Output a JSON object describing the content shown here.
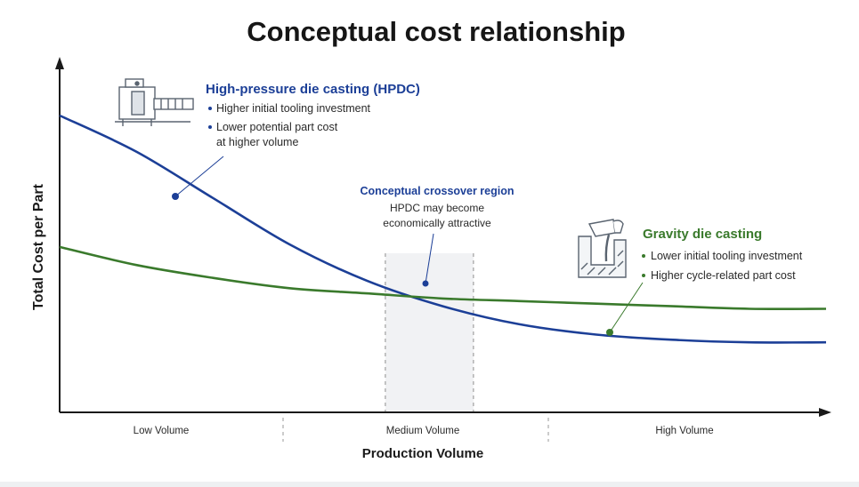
{
  "chart_data": {
    "type": "line",
    "title": "Conceptual cost relationship",
    "xlabel": "Production Volume",
    "ylabel": "Total Cost per Part",
    "x_tick_labels": [
      "Low Volume",
      "Medium Volume",
      "High Volume"
    ],
    "x": [
      0,
      0.1,
      0.2,
      0.3,
      0.4,
      0.5,
      0.6,
      0.7,
      0.8,
      0.9,
      1.0
    ],
    "xlim": [
      0,
      1
    ],
    "ylim": [
      0,
      1
    ],
    "grid": false,
    "legend": "none",
    "series": [
      {
        "name": "High-pressure die casting (HPDC)",
        "color": "#1c3f97",
        "values": [
          1.0,
          0.86,
          0.68,
          0.5,
          0.36,
          0.26,
          0.19,
          0.15,
          0.13,
          0.12,
          0.12
        ]
      },
      {
        "name": "Gravity die casting",
        "color": "#3a7a2c",
        "values": [
          0.49,
          0.42,
          0.37,
          0.33,
          0.31,
          0.29,
          0.28,
          0.27,
          0.26,
          0.25,
          0.25
        ]
      }
    ],
    "annotations": {
      "hpdc": {
        "title": "High-pressure die casting (HPDC)",
        "bullets": [
          "Higher initial tooling investment",
          "Lower potential part cost",
          "at higher volume"
        ],
        "icon": "die-casting-machine-icon"
      },
      "gravity": {
        "title": "Gravity die casting",
        "bullets": [
          "Lower initial tooling investment",
          "Higher cycle-related part cost"
        ],
        "icon": "pouring-ladle-mold-icon"
      },
      "crossover": {
        "title": "Conceptual crossover region",
        "lines": [
          "HPDC may become",
          "economically attractive"
        ],
        "x_range": [
          0.425,
          0.54
        ]
      }
    },
    "colors": {
      "axis": "#1a1a1a",
      "crossover_fill": "#f1f2f4",
      "divider": "#9a9a9a"
    }
  }
}
